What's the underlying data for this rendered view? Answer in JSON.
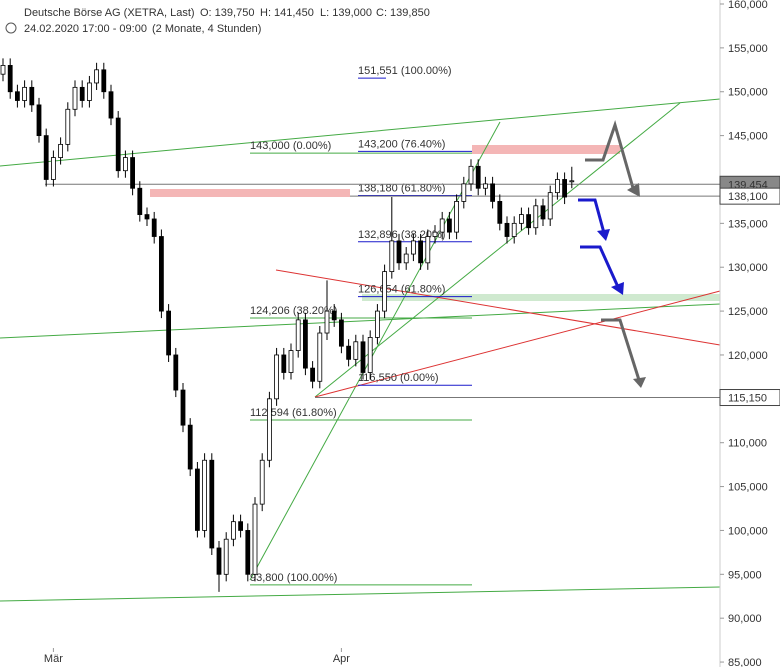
{
  "chart_data": {
    "type": "candlestick",
    "title": "Deutsche Börse AG (XETRA, Last)",
    "ohlc_text": [
      "O: 139,750",
      "H: 141,450",
      "L: 139,000",
      "C: 139,850"
    ],
    "subtitle": "24.02.2020 17:00 - 09:00",
    "period": "(2 Monate, 4 Stunden)",
    "categories": [
      null,
      null,
      null,
      null,
      null,
      null,
      null,
      "Mär",
      null,
      null,
      null,
      null,
      null,
      null,
      null,
      null,
      null,
      null,
      null,
      null,
      null,
      null,
      null,
      null,
      null,
      null,
      null,
      null,
      null,
      null,
      null,
      null,
      null,
      null,
      null,
      null,
      null,
      null,
      null,
      null,
      null,
      null,
      null,
      null,
      null,
      null,
      null,
      "Apr",
      null,
      null,
      null,
      null,
      null,
      null,
      null,
      null,
      null,
      null,
      null,
      null,
      null,
      null,
      null,
      null,
      null,
      null,
      null,
      null,
      null,
      null,
      null,
      null,
      null,
      null,
      null,
      null,
      null,
      null,
      null,
      null
    ],
    "open": [
      152000,
      153000,
      150000,
      149000,
      150500,
      148500,
      145000,
      140000,
      142500,
      144000,
      148000,
      150500,
      149000,
      151000,
      152500,
      150000,
      147000,
      141000,
      142500,
      139000,
      136000,
      135500,
      133500,
      125000,
      120000,
      116000,
      112000,
      107000,
      100000,
      108000,
      98000,
      95000,
      99000,
      101000,
      100000,
      95000,
      103000,
      108000,
      115000,
      120000,
      118000,
      120500,
      124000,
      118500,
      117000,
      122500,
      125000,
      124000,
      121000,
      119500,
      121500,
      118000,
      122000,
      125000,
      129500,
      133000,
      130500,
      131500,
      133000,
      130500,
      133500,
      134000,
      135500,
      134000,
      137500,
      139500,
      141500,
      139000,
      139500,
      137500,
      135000,
      133500,
      135000,
      136000,
      134500,
      137000,
      135500,
      138500,
      140000,
      139750
    ],
    "high": [
      153800,
      153800,
      150800,
      151300,
      151300,
      149300,
      145800,
      143300,
      144800,
      148800,
      151300,
      151300,
      151800,
      153300,
      153300,
      150800,
      147800,
      143300,
      143300,
      139800,
      136800,
      136300,
      134300,
      125800,
      120800,
      116800,
      112800,
      107800,
      108800,
      108800,
      98800,
      99800,
      101800,
      101800,
      100800,
      103800,
      108800,
      115800,
      120800,
      120800,
      121300,
      124800,
      124800,
      119300,
      123300,
      128500,
      125800,
      124800,
      121800,
      122300,
      122300,
      122800,
      125800,
      130300,
      138000,
      133800,
      132300,
      133800,
      133800,
      134300,
      134800,
      136300,
      136300,
      138300,
      140300,
      142300,
      142300,
      140300,
      140300,
      138300,
      135800,
      135800,
      136800,
      136800,
      137800,
      137800,
      139300,
      140800,
      140800,
      141450
    ],
    "low": [
      151200,
      149200,
      148200,
      148200,
      147700,
      144200,
      139200,
      139200,
      141700,
      143200,
      147200,
      148200,
      148200,
      150200,
      149200,
      146200,
      140200,
      140200,
      138200,
      135200,
      134700,
      132700,
      124200,
      119200,
      115200,
      111200,
      106200,
      99200,
      99200,
      97200,
      93000,
      94200,
      98200,
      99200,
      94200,
      94200,
      102200,
      107200,
      114200,
      117200,
      117200,
      119700,
      117700,
      116200,
      116200,
      121700,
      123200,
      120200,
      118700,
      118700,
      117200,
      117200,
      121200,
      124200,
      128700,
      129700,
      129700,
      130700,
      129700,
      129700,
      132700,
      133200,
      133200,
      133200,
      136700,
      138700,
      138200,
      138200,
      136700,
      134200,
      132700,
      132700,
      134200,
      133700,
      133700,
      134700,
      134700,
      137700,
      137200,
      139000
    ],
    "close": [
      153000,
      150000,
      149000,
      150500,
      148500,
      145000,
      140000,
      142500,
      144000,
      148000,
      150500,
      149000,
      151000,
      152500,
      150000,
      147000,
      141000,
      142500,
      139000,
      136000,
      135500,
      133500,
      125000,
      120000,
      116000,
      112000,
      107000,
      100000,
      108000,
      98000,
      95000,
      99000,
      101000,
      100000,
      95000,
      103000,
      108000,
      115000,
      120000,
      118000,
      120500,
      124000,
      118500,
      117000,
      122500,
      125000,
      124000,
      121000,
      119500,
      121500,
      118000,
      122000,
      125000,
      129500,
      133000,
      130500,
      131500,
      133000,
      130500,
      133500,
      134000,
      135500,
      134000,
      137500,
      139500,
      141500,
      139000,
      139500,
      137500,
      135000,
      133500,
      135000,
      136000,
      134500,
      137000,
      135500,
      138500,
      140000,
      138000,
      139850
    ],
    "up_color": "#ffffff",
    "down_color": "#000000",
    "edge_color": "#000000",
    "ylim": [
      84436,
      160456
    ],
    "yticks": [
      {
        "value": 85000,
        "label": "85,000"
      },
      {
        "value": 90000,
        "label": "90,000"
      },
      {
        "value": 95000,
        "label": "95,000"
      },
      {
        "value": 100000,
        "label": "100,000"
      },
      {
        "value": 105000,
        "label": "105,000"
      },
      {
        "value": 110000,
        "label": "110,000"
      },
      {
        "value": 115000,
        "label": "115,000"
      },
      {
        "value": 120000,
        "label": "120,000"
      },
      {
        "value": 125000,
        "label": "125,000"
      },
      {
        "value": 130000,
        "label": "130,000"
      },
      {
        "value": 135000,
        "label": "135,000"
      },
      {
        "value": 140000,
        "label": "140,000"
      },
      {
        "value": 145000,
        "label": "145,000"
      },
      {
        "value": 150000,
        "label": "150,000"
      },
      {
        "value": 155000,
        "label": "155,000"
      },
      {
        "value": 160000,
        "label": "160,000"
      }
    ],
    "price_markers": [
      {
        "value": 139454,
        "label": "139,454",
        "color": "#888888"
      },
      {
        "value": 138100,
        "label": "138,100",
        "color": "#ffffff"
      },
      {
        "value": 115150,
        "label": "115,150",
        "color": "#ffffff"
      }
    ],
    "annotations": [
      {
        "value": 151551,
        "label": "151,551 (100.00%)",
        "color": "#1a1acc"
      },
      {
        "value": 143000,
        "label": "143,000 (0.00%)",
        "color": "#44aa44"
      },
      {
        "value": 143200,
        "label": "143,200 (76.40%)",
        "color": "#1a1acc"
      },
      {
        "value": 138180,
        "label": "138,180 (61.80%)",
        "color": "#1a1acc"
      },
      {
        "value": 132896,
        "label": "132,896 (38.20%)",
        "color": "#1a1acc"
      },
      {
        "value": 126654,
        "label": "126,654 (61.80%)",
        "color": "#1a1acc"
      },
      {
        "value": 124206,
        "label": "124,206 (38.20%)",
        "color": "#44aa44"
      },
      {
        "value": 116550,
        "label": "116,550 (0.00%)",
        "color": "#1a1acc"
      },
      {
        "value": 112594,
        "label": "112,594 (61.80%)",
        "color": "#44aa44"
      },
      {
        "value": 93800,
        "label": "93,800 (100.00%)",
        "color": "#44aa44"
      }
    ]
  }
}
